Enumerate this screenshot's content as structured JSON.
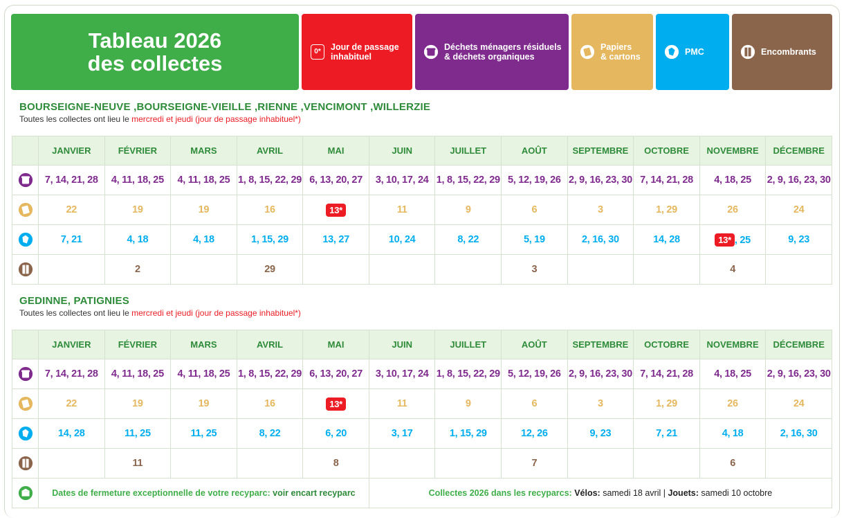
{
  "header": {
    "title_line1": "Tableau 2026",
    "title_line2": "des collectes",
    "legend": {
      "unusual_badge": "0*",
      "unusual_line1": "Jour de passage",
      "unusual_line2": "inhabituel",
      "residual_line1": "Déchets ménagers résiduels",
      "residual_line2": "& déchets organiques",
      "paper_line1": "Papiers",
      "paper_line2": "& cartons",
      "pmc": "PMC",
      "bulky": "Encombrants"
    }
  },
  "months": [
    "JANVIER",
    "FÉVRIER",
    "MARS",
    "AVRIL",
    "MAI",
    "JUIN",
    "JUILLET",
    "AOÛT",
    "SEPTEMBRE",
    "OCTOBRE",
    "NOVEMBRE",
    "DÉCEMBRE"
  ],
  "section1": {
    "zone": "BOURSEIGNE-NEUVE ,BOURSEIGNE-VIEILLE ,RIENNE ,VENCIMONT ,WILLERZIE",
    "sub_prefix": "Toutes les collectes ont lieu le ",
    "sub_highlight": "mercredi et jeudi (jour de passage inhabituel*)",
    "residual": [
      "7, 14, 21, 28",
      "4, 11, 18, 25",
      "4, 11, 18, 25",
      "1, 8, 15, 22, 29",
      "6, 13, 20, 27",
      "3, 10, 17, 24",
      "1, 8, 15, 22, 29",
      "5, 12, 19, 26",
      "2, 9, 16, 23, 30",
      "7, 14, 21, 28",
      "4, 18, 25",
      "2, 9, 16, 23, 30"
    ],
    "paper": [
      "22",
      "19",
      "19",
      "16",
      "13*",
      "11",
      "9",
      "6",
      "3",
      "1, 29",
      "26",
      "24"
    ],
    "pmc": [
      "7, 21",
      "4, 18",
      "4, 18",
      "1, 15, 29",
      "13, 27",
      "10, 24",
      "8, 22",
      "5, 19",
      "2, 16, 30",
      "14, 28",
      "13*",
      "9, 23"
    ],
    "pmc_nov_rest": ", 25",
    "bulky": [
      "",
      "2",
      "",
      "29",
      "",
      "",
      "",
      "3",
      "",
      "",
      "4",
      ""
    ]
  },
  "section2": {
    "zone": "GEDINNE, PATIGNIES",
    "sub_prefix": "Toutes les collectes ont lieu le ",
    "sub_highlight": "mercredi et jeudi (jour de passage inhabituel*)",
    "residual": [
      "7, 14, 21, 28",
      "4, 11, 18, 25",
      "4, 11, 18, 25",
      "1, 8, 15, 22, 29",
      "6, 13, 20, 27",
      "3, 10, 17, 24",
      "1, 8, 15, 22, 29",
      "5, 12, 19, 26",
      "2, 9, 16, 23, 30",
      "7, 14, 21, 28",
      "4, 18, 25",
      "2, 9, 16, 23, 30"
    ],
    "paper": [
      "22",
      "19",
      "19",
      "16",
      "13*",
      "11",
      "9",
      "6",
      "3",
      "1, 29",
      "26",
      "24"
    ],
    "pmc": [
      "14, 28",
      "11, 25",
      "11, 25",
      "8, 22",
      "6, 20",
      "3, 17",
      "1, 15, 29",
      "12, 26",
      "9, 23",
      "7, 21",
      "4, 18",
      "2, 16, 30"
    ],
    "bulky": [
      "",
      "11",
      "",
      "",
      "8",
      "",
      "",
      "7",
      "",
      "",
      "6",
      ""
    ]
  },
  "footer": {
    "closure_text": "Dates de fermeture exceptionnelle de votre recyparc: ",
    "closure_link": "voir encart recyparc",
    "collections_label": "Collectes 2026 dans les recyparcs: ",
    "bikes_label": "Vélos:",
    "bikes_date": " samedi 18 avril",
    "separator": "  |  ",
    "toys_label": "Jouets:",
    "toys_date": " samedi 10 octobre"
  },
  "colors": {
    "green": "#3fae49",
    "red": "#ed1c24",
    "purple": "#7f2b8e",
    "yellow": "#e5b860",
    "blue": "#00aeef",
    "brown": "#8b654b"
  },
  "icons": [
    "bin-icon",
    "paper-icon",
    "pmc-icon",
    "bulky-icon",
    "recyparc-icon"
  ]
}
